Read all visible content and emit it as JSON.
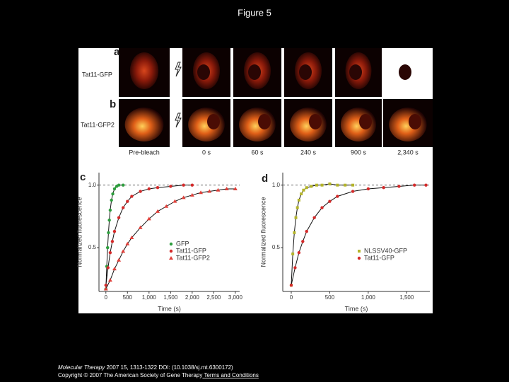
{
  "title": "Figure 5",
  "panels": {
    "a": "a",
    "b": "b",
    "c": "c",
    "d": "d",
    "row_a": "Tat11-GFP",
    "row_b": "Tat11-GFP2",
    "times": [
      "Pre-bleach",
      "0 s",
      "60 s",
      "240 s",
      "900 s",
      "2,340 s"
    ]
  },
  "chart_data": [
    {
      "type": "scatter",
      "xlabel": "Time (s)",
      "ylabel": "Normalized fluorescence",
      "xlim": [
        -160,
        3100
      ],
      "ylim": [
        0.15,
        1.1
      ],
      "xticks": [
        0,
        500,
        {
          "value": 1000,
          "label": "1,000"
        },
        {
          "value": 1500,
          "label": "1,500"
        },
        {
          "value": 2000,
          "label": "2,000"
        },
        {
          "value": 2500,
          "label": "2,500"
        },
        {
          "value": 3000,
          "label": "3,000"
        }
      ],
      "yticks": [
        0.5,
        {
          "value": 1,
          "label": "1.0"
        }
      ],
      "series": [
        {
          "name": "GFP",
          "color": "#2e9e3e",
          "marker": "circle",
          "x": [
            0,
            20,
            40,
            60,
            80,
            100,
            130,
            160,
            200,
            250,
            300,
            400
          ],
          "values": [
            0.17,
            0.35,
            0.5,
            0.62,
            0.72,
            0.8,
            0.88,
            0.93,
            0.97,
            0.99,
            1.0,
            1.0
          ]
        },
        {
          "name": "Tat11-GFP",
          "color": "#d42a2a",
          "marker": "circle",
          "x": [
            0,
            50,
            100,
            150,
            200,
            300,
            400,
            500,
            600,
            800,
            1000,
            1200,
            1500,
            1800,
            2000
          ],
          "values": [
            0.2,
            0.34,
            0.46,
            0.55,
            0.63,
            0.74,
            0.82,
            0.87,
            0.91,
            0.95,
            0.97,
            0.98,
            0.99,
            1.0,
            1.0
          ]
        },
        {
          "name": "Tat11-GFP2",
          "color": "#e0403a",
          "marker": "triangle",
          "x": [
            0,
            100,
            200,
            300,
            400,
            500,
            600,
            800,
            1000,
            1200,
            1400,
            1600,
            1800,
            2000,
            2200,
            2400,
            2600,
            2800,
            3000
          ],
          "values": [
            0.17,
            0.24,
            0.33,
            0.4,
            0.47,
            0.53,
            0.58,
            0.66,
            0.73,
            0.79,
            0.83,
            0.87,
            0.9,
            0.92,
            0.94,
            0.95,
            0.96,
            0.97,
            0.97
          ]
        }
      ]
    },
    {
      "type": "scatter",
      "xlabel": "Time (s)",
      "ylabel": "Normalized fluorescence",
      "xlim": [
        -110,
        1800
      ],
      "ylim": [
        0.15,
        1.1
      ],
      "xticks": [
        0,
        500,
        {
          "value": 1000,
          "label": "1,000"
        },
        {
          "value": 1500,
          "label": "1,500"
        }
      ],
      "yticks": [
        0.5,
        {
          "value": 1,
          "label": "1.0"
        }
      ],
      "series": [
        {
          "name": "NLSSV40-GFP",
          "color": "#b5b52a",
          "marker": "square",
          "x": [
            0,
            20,
            40,
            60,
            80,
            100,
            130,
            160,
            200,
            260,
            330,
            400,
            500,
            600,
            700,
            800
          ],
          "values": [
            0.2,
            0.45,
            0.62,
            0.74,
            0.82,
            0.88,
            0.93,
            0.96,
            0.98,
            0.99,
            1.0,
            1.0,
            1.01,
            1.0,
            1.0,
            1.0
          ]
        },
        {
          "name": "Tat11-GFP",
          "color": "#d42a2a",
          "marker": "circle",
          "x": [
            0,
            50,
            100,
            150,
            200,
            300,
            400,
            500,
            600,
            800,
            1000,
            1200,
            1400,
            1600,
            1750
          ],
          "values": [
            0.2,
            0.34,
            0.46,
            0.55,
            0.63,
            0.74,
            0.82,
            0.87,
            0.91,
            0.95,
            0.97,
            0.98,
            0.99,
            1.0,
            1.0
          ]
        }
      ]
    }
  ],
  "footer": {
    "journal": "Molecular Therapy",
    "citation": " 2007 15, 1313-1322 DOI: (10.1038/sj.mt.6300172)",
    "copyright": "Copyright © 2007 The American Society of Gene Therapy",
    "link": " Terms and Conditions"
  }
}
